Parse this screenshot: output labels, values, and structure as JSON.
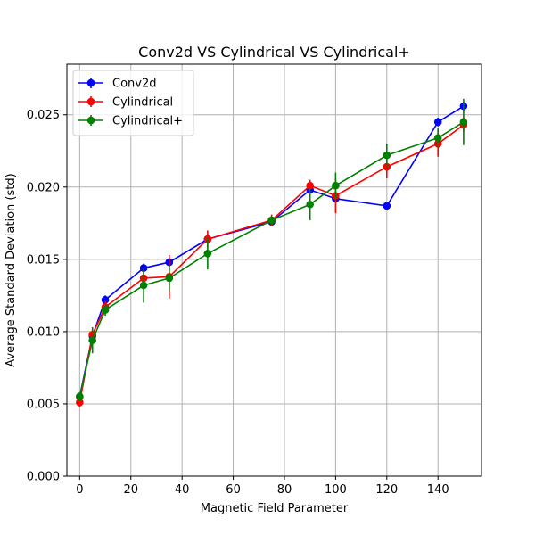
{
  "chart_data": {
    "type": "line",
    "title": "Conv2d VS Cylindrical VS Cylindrical+",
    "xlabel": "Magnetic Field Parameter",
    "ylabel": "Average Standard Deviation (std)",
    "xlim": [
      -5,
      157
    ],
    "ylim": [
      0,
      0.0285
    ],
    "xticks": [
      0,
      20,
      40,
      60,
      80,
      100,
      120,
      140
    ],
    "xtick_labels": [
      "0",
      "20",
      "40",
      "60",
      "80",
      "100",
      "120",
      "140"
    ],
    "yticks": [
      0,
      0.005,
      0.01,
      0.015,
      0.02,
      0.025
    ],
    "ytick_labels": [
      "0.000",
      "0.005",
      "0.010",
      "0.015",
      "0.020",
      "0.025"
    ],
    "grid": true,
    "legend_position": "top-left",
    "series": [
      {
        "name": "Conv2d",
        "color": "#0000ff",
        "x": [
          0,
          5,
          10,
          25,
          35,
          50,
          75,
          90,
          100,
          120,
          140,
          150
        ],
        "y": [
          0.0055,
          0.0097,
          0.0122,
          0.0144,
          0.0148,
          0.0164,
          0.0176,
          0.0198,
          0.0192,
          0.0187,
          0.0245,
          0.0256
        ],
        "err": [
          0.0003,
          0.0003,
          0.0003,
          0.0003,
          0.0003,
          0.0003,
          0.0003,
          0.0003,
          0.0003,
          0.0003,
          0.0003,
          0.0003
        ]
      },
      {
        "name": "Cylindrical",
        "color": "#ff0000",
        "x": [
          0,
          5,
          10,
          25,
          35,
          50,
          75,
          90,
          100,
          120,
          140,
          150
        ],
        "y": [
          0.0051,
          0.0098,
          0.0117,
          0.0137,
          0.0138,
          0.0164,
          0.0177,
          0.0201,
          0.0194,
          0.0214,
          0.023,
          0.0243
        ],
        "err": [
          0.0003,
          0.0004,
          0.0004,
          0.0004,
          0.0015,
          0.0006,
          0.0004,
          0.0004,
          0.0012,
          0.0008,
          0.0009,
          0.0005
        ]
      },
      {
        "name": "Cylindrical+",
        "color": "#008000",
        "x": [
          0,
          5,
          10,
          25,
          35,
          50,
          75,
          90,
          100,
          120,
          140,
          150
        ],
        "y": [
          0.0055,
          0.0094,
          0.0115,
          0.0132,
          0.0137,
          0.0154,
          0.0177,
          0.0188,
          0.0201,
          0.0222,
          0.0234,
          0.0245
        ],
        "err": [
          0.0003,
          0.0009,
          0.0004,
          0.0012,
          0.0009,
          0.0011,
          0.0003,
          0.0011,
          0.0009,
          0.0008,
          0.0007,
          0.0016
        ]
      }
    ]
  }
}
